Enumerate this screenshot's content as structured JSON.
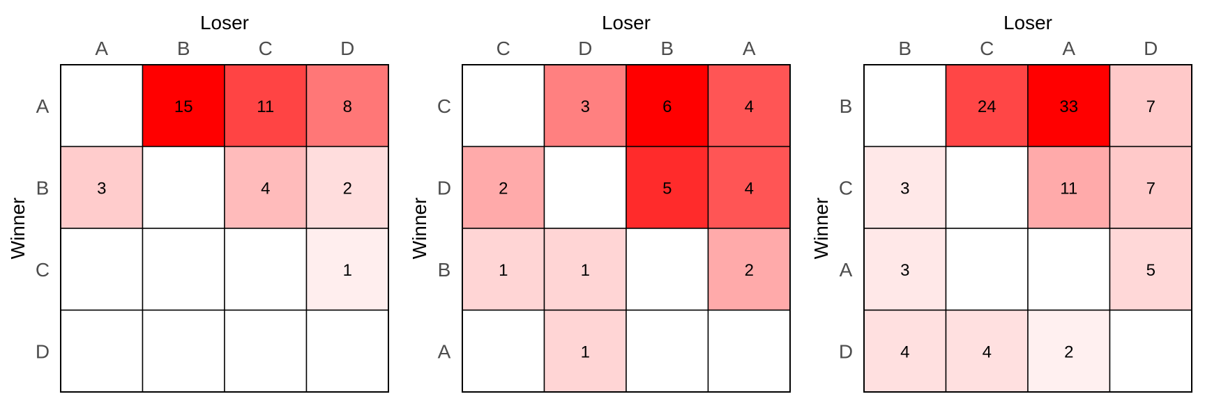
{
  "chart_data": [
    {
      "type": "heatmap",
      "xlabel": "Loser",
      "ylabel": "Winner",
      "x_categories": [
        "A",
        "B",
        "C",
        "D"
      ],
      "y_categories": [
        "A",
        "B",
        "C",
        "D"
      ],
      "values": [
        [
          null,
          15,
          11,
          8
        ],
        [
          3,
          null,
          4,
          2
        ],
        [
          null,
          null,
          null,
          1
        ],
        [
          null,
          null,
          null,
          null
        ]
      ],
      "colors": {
        "low": "#ffffff",
        "high": "#ff0000"
      }
    },
    {
      "type": "heatmap",
      "xlabel": "Loser",
      "ylabel": "Winner",
      "x_categories": [
        "C",
        "D",
        "B",
        "A"
      ],
      "y_categories": [
        "C",
        "D",
        "B",
        "A"
      ],
      "values": [
        [
          null,
          3,
          6,
          4
        ],
        [
          2,
          null,
          5,
          4
        ],
        [
          1,
          1,
          null,
          2
        ],
        [
          null,
          1,
          null,
          null
        ]
      ],
      "colors": {
        "low": "#ffffff",
        "high": "#ff0000"
      }
    },
    {
      "type": "heatmap",
      "xlabel": "Loser",
      "ylabel": "Winner",
      "x_categories": [
        "B",
        "C",
        "A",
        "D"
      ],
      "y_categories": [
        "B",
        "C",
        "A",
        "D"
      ],
      "values": [
        [
          null,
          24,
          33,
          7
        ],
        [
          3,
          null,
          11,
          7
        ],
        [
          3,
          null,
          null,
          5
        ],
        [
          4,
          4,
          2,
          null
        ]
      ],
      "colors": {
        "low": "#ffffff",
        "high": "#ff0000"
      }
    }
  ]
}
